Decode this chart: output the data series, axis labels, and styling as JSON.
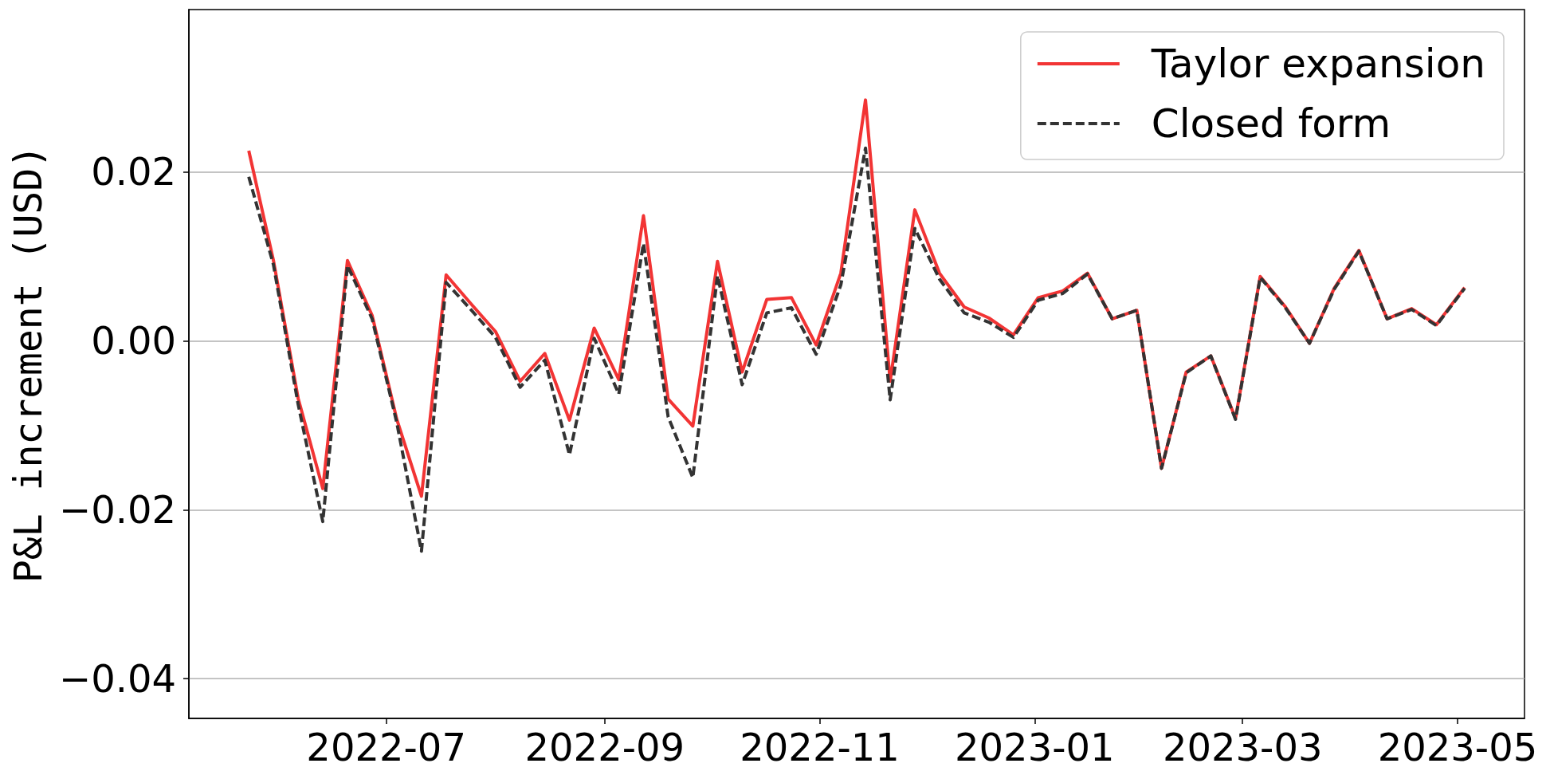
{
  "chart_data": {
    "type": "line",
    "ylabel": "P&L increment (USD)",
    "x": [
      "2022-05-23",
      "2022-05-30",
      "2022-06-06",
      "2022-06-13",
      "2022-06-20",
      "2022-06-27",
      "2022-07-04",
      "2022-07-11",
      "2022-07-18",
      "2022-07-25",
      "2022-08-01",
      "2022-08-08",
      "2022-08-15",
      "2022-08-22",
      "2022-08-29",
      "2022-09-05",
      "2022-09-12",
      "2022-09-19",
      "2022-09-26",
      "2022-10-03",
      "2022-10-10",
      "2022-10-17",
      "2022-10-24",
      "2022-10-31",
      "2022-11-07",
      "2022-11-14",
      "2022-11-21",
      "2022-11-28",
      "2022-12-05",
      "2022-12-12",
      "2022-12-19",
      "2022-12-26",
      "2023-01-02",
      "2023-01-09",
      "2023-01-16",
      "2023-01-23",
      "2023-01-30",
      "2023-02-06",
      "2023-02-13",
      "2023-02-20",
      "2023-02-27",
      "2023-03-06",
      "2023-03-13",
      "2023-03-20",
      "2023-03-27",
      "2023-04-03",
      "2023-04-11",
      "2023-04-18",
      "2023-04-25",
      "2023-05-03"
    ],
    "series": [
      {
        "name": "Taylor expansion",
        "color": "#f23434",
        "line_style": "solid",
        "values": [
          0.0225,
          0.0095,
          -0.0068,
          -0.0175,
          0.0095,
          0.003,
          -0.0093,
          -0.0184,
          0.0078,
          0.0044,
          0.0011,
          -0.0048,
          -0.0015,
          -0.0094,
          0.0015,
          -0.0046,
          0.0148,
          -0.0069,
          -0.0101,
          0.0094,
          -0.0037,
          0.0049,
          0.0051,
          -0.0005,
          0.008,
          0.0285,
          -0.0048,
          0.0155,
          0.008,
          0.004,
          0.0027,
          0.0007,
          0.0051,
          0.0059,
          0.008,
          0.0026,
          0.0036,
          -0.0151,
          -0.0037,
          -0.0018,
          -0.0092,
          0.0076,
          0.0041,
          -0.0003,
          0.0062,
          0.0107,
          0.0026,
          0.0038,
          0.0019,
          0.0063
        ]
      },
      {
        "name": "Closed form",
        "color": "#333333",
        "line_style": "dashed",
        "values": [
          0.0194,
          0.009,
          -0.0075,
          -0.0214,
          0.0089,
          0.0026,
          -0.0097,
          -0.0249,
          0.0069,
          0.0037,
          0.0004,
          -0.0055,
          -0.0023,
          -0.0135,
          0.0003,
          -0.0063,
          0.0115,
          -0.009,
          -0.0162,
          0.0077,
          -0.0052,
          0.0033,
          0.0039,
          -0.0016,
          0.0066,
          0.0228,
          -0.007,
          0.0133,
          0.0073,
          0.0033,
          0.0022,
          0.0004,
          0.0048,
          0.0056,
          0.0079,
          0.0026,
          0.0036,
          -0.0151,
          -0.0038,
          -0.0018,
          -0.0093,
          0.0075,
          0.004,
          -0.0003,
          0.0061,
          0.0106,
          0.0026,
          0.0037,
          0.0018,
          0.0062
        ]
      }
    ],
    "xlim": [
      "2022-05-06",
      "2023-05-20"
    ],
    "xticks": [
      "2022-07",
      "2022-09",
      "2022-11",
      "2023-01",
      "2023-03",
      "2023-05"
    ],
    "ylim": [
      -0.0447,
      0.0392
    ],
    "yticks": [
      {
        "value": -0.04,
        "label": "−0.04"
      },
      {
        "value": -0.02,
        "label": "−0.02"
      },
      {
        "value": 0,
        "label": "0.00"
      },
      0.02
    ],
    "grid": "y",
    "legend": "top right"
  }
}
